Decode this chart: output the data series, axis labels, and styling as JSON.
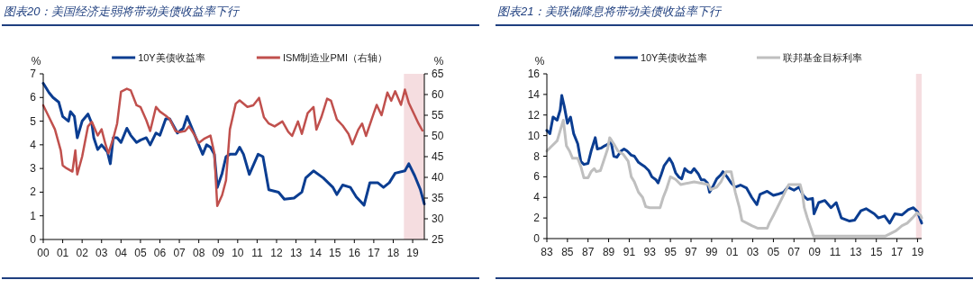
{
  "chart_data": [
    {
      "type": "line",
      "title": "图表20：美国经济走弱将带动美债收益率下行",
      "ylabel": "%",
      "y2label": "%",
      "legend": "top",
      "xlim": [
        2000,
        2019.6
      ],
      "xticks": [
        {
          "value": 2000,
          "label": "00"
        },
        {
          "value": 2001,
          "label": "01"
        },
        {
          "value": 2002,
          "label": "02"
        },
        {
          "value": 2003,
          "label": "03"
        },
        {
          "value": 2004,
          "label": "04"
        },
        {
          "value": 2005,
          "label": "05"
        },
        {
          "value": 2006,
          "label": "06"
        },
        {
          "value": 2007,
          "label": "07"
        },
        {
          "value": 2008,
          "label": "08"
        },
        {
          "value": 2009,
          "label": "09"
        },
        {
          "value": 2010,
          "label": "10"
        },
        {
          "value": 2011,
          "label": "11"
        },
        {
          "value": 2012,
          "label": "12"
        },
        {
          "value": 2013,
          "label": "13"
        },
        {
          "value": 2014,
          "label": "14"
        },
        {
          "value": 2015,
          "label": "15"
        },
        {
          "value": 2016,
          "label": "16"
        },
        {
          "value": 2017,
          "label": "17"
        },
        {
          "value": 2018,
          "label": "18"
        },
        {
          "value": 2019,
          "label": "19"
        }
      ],
      "ylim": [
        0,
        7
      ],
      "yticks": [
        0,
        1,
        2,
        3,
        4,
        5,
        6,
        7
      ],
      "y2lim": [
        25,
        65
      ],
      "y2ticks": [
        25,
        30,
        35,
        40,
        45,
        50,
        55,
        60,
        65
      ],
      "bands": [
        {
          "axis": "x",
          "from": 2018.55,
          "to": 2019.6,
          "color": "#f2d5d8"
        }
      ],
      "series": [
        {
          "name": "10Y美债收益率",
          "color": "#0b3d91",
          "x": [
            2000.0,
            2000.3,
            2000.5,
            2000.8,
            2001.0,
            2001.3,
            2001.4,
            2001.6,
            2001.75,
            2002.0,
            2002.3,
            2002.5,
            2002.6,
            2002.8,
            2003.0,
            2003.3,
            2003.45,
            2003.6,
            2003.8,
            2004.0,
            2004.3,
            2004.5,
            2004.8,
            2005.0,
            2005.3,
            2005.5,
            2005.8,
            2006.0,
            2006.3,
            2006.5,
            2006.7,
            2006.9,
            2007.2,
            2007.4,
            2007.6,
            2007.9,
            2008.2,
            2008.4,
            2008.6,
            2008.8,
            2008.95,
            2009.2,
            2009.4,
            2009.6,
            2009.9,
            2010.1,
            2010.3,
            2010.6,
            2011.05,
            2011.3,
            2011.6,
            2012.1,
            2012.4,
            2012.9,
            2013.3,
            2013.5,
            2013.9,
            2014.4,
            2014.9,
            2015.1,
            2015.4,
            2015.8,
            2016.1,
            2016.5,
            2016.8,
            2017.2,
            2017.5,
            2017.8,
            2018.1,
            2018.6,
            2018.8,
            2019.1,
            2019.4,
            2019.6
          ],
          "values": [
            6.6,
            6.2,
            6.0,
            5.8,
            5.2,
            5.0,
            5.4,
            5.2,
            4.3,
            5.0,
            5.3,
            4.9,
            4.3,
            3.8,
            4.0,
            3.7,
            3.2,
            4.3,
            4.3,
            4.1,
            4.7,
            4.4,
            4.1,
            4.2,
            4.3,
            4.0,
            4.5,
            4.4,
            5.1,
            5.1,
            4.8,
            4.5,
            4.7,
            5.2,
            4.8,
            4.2,
            3.6,
            4.0,
            3.9,
            3.6,
            2.2,
            2.8,
            3.5,
            3.6,
            3.6,
            3.9,
            3.6,
            2.75,
            3.6,
            3.5,
            2.1,
            2.0,
            1.7,
            1.75,
            2.0,
            2.6,
            2.9,
            2.6,
            2.2,
            1.9,
            2.3,
            2.2,
            1.8,
            1.45,
            2.4,
            2.4,
            2.2,
            2.4,
            2.8,
            2.9,
            3.2,
            2.7,
            2.1,
            1.5
          ]
        },
        {
          "name": "ISM制造业PMI（右轴）",
          "color": "#c0504d",
          "axis": "y2",
          "x": [
            2000.0,
            2000.3,
            2000.6,
            2000.9,
            2001.0,
            2001.2,
            2001.5,
            2001.65,
            2001.75,
            2002.0,
            2002.3,
            2002.5,
            2002.8,
            2003.0,
            2003.2,
            2003.35,
            2003.6,
            2003.8,
            2004.0,
            2004.3,
            2004.5,
            2004.8,
            2005.0,
            2005.3,
            2005.5,
            2005.8,
            2006.0,
            2006.3,
            2006.5,
            2006.8,
            2007.0,
            2007.3,
            2007.5,
            2007.8,
            2008.0,
            2008.3,
            2008.6,
            2008.8,
            2008.95,
            2009.2,
            2009.4,
            2009.6,
            2009.9,
            2010.1,
            2010.5,
            2010.8,
            2011.1,
            2011.35,
            2011.6,
            2011.9,
            2012.3,
            2012.6,
            2012.8,
            2013.1,
            2013.3,
            2013.6,
            2013.9,
            2014.05,
            2014.3,
            2014.6,
            2014.8,
            2015.1,
            2015.4,
            2015.7,
            2015.9,
            2016.2,
            2016.4,
            2016.6,
            2017.0,
            2017.15,
            2017.4,
            2017.7,
            2017.9,
            2018.1,
            2018.4,
            2018.6,
            2018.8,
            2019.1,
            2019.3,
            2019.5
          ],
          "values": [
            57.4,
            54.5,
            51.6,
            46.5,
            42.9,
            42.2,
            41.4,
            46.5,
            40.7,
            45,
            52.3,
            53.4,
            50.1,
            51.6,
            48,
            45.8,
            49.4,
            53,
            60.7,
            61.4,
            61,
            57.4,
            57,
            53.8,
            51.2,
            57,
            55.9,
            54.9,
            54.1,
            51.2,
            50.9,
            51.2,
            52.3,
            50.1,
            48.3,
            49.4,
            50.1,
            45.8,
            33.1,
            35.7,
            39.3,
            51.6,
            57.8,
            58.6,
            57,
            57.4,
            59.2,
            54.5,
            53,
            52.3,
            53.5,
            51,
            50,
            53.5,
            50.5,
            55.5,
            57,
            51.5,
            54.5,
            59,
            58.5,
            54,
            52.5,
            50.5,
            48,
            51.5,
            53,
            50,
            55.5,
            57.5,
            55,
            60.5,
            58.5,
            60.8,
            57.5,
            61.2,
            58,
            55,
            53,
            51.3
          ]
        }
      ]
    },
    {
      "type": "line",
      "title": "图表21：美联储降息将带动美债收益率下行",
      "ylabel": "%",
      "legend": "top",
      "xlim": [
        1983,
        2019.4
      ],
      "xticks": [
        {
          "value": 1983,
          "label": "83"
        },
        {
          "value": 1985,
          "label": "85"
        },
        {
          "value": 1987,
          "label": "87"
        },
        {
          "value": 1989,
          "label": "89"
        },
        {
          "value": 1991,
          "label": "91"
        },
        {
          "value": 1993,
          "label": "93"
        },
        {
          "value": 1995,
          "label": "95"
        },
        {
          "value": 1997,
          "label": "97"
        },
        {
          "value": 1999,
          "label": "99"
        },
        {
          "value": 2001,
          "label": "01"
        },
        {
          "value": 2003,
          "label": "03"
        },
        {
          "value": 2005,
          "label": "05"
        },
        {
          "value": 2007,
          "label": "07"
        },
        {
          "value": 2009,
          "label": "09"
        },
        {
          "value": 2011,
          "label": "11"
        },
        {
          "value": 2013,
          "label": "13"
        },
        {
          "value": 2015,
          "label": "15"
        },
        {
          "value": 2017,
          "label": "17"
        },
        {
          "value": 2019,
          "label": "19"
        }
      ],
      "ylim": [
        0,
        16
      ],
      "yticks": [
        0,
        2,
        4,
        6,
        8,
        10,
        12,
        14,
        16
      ],
      "bands": [
        {
          "axis": "x",
          "from": 2018.85,
          "to": 2019.4,
          "color": "#f2d5d8"
        }
      ],
      "series": [
        {
          "name": "10Y美债收益率",
          "color": "#0b3d91",
          "x": [
            1983.0,
            1983.3,
            1983.6,
            1984.0,
            1984.3,
            1984.45,
            1984.7,
            1985.0,
            1985.3,
            1985.6,
            1986.0,
            1986.3,
            1986.6,
            1987.0,
            1987.3,
            1987.7,
            1987.9,
            1988.3,
            1988.6,
            1989.0,
            1989.2,
            1989.5,
            1989.8,
            1990.2,
            1990.5,
            1990.8,
            1991.2,
            1991.5,
            1991.9,
            1992.2,
            1992.5,
            1992.9,
            1993.2,
            1993.6,
            1993.8,
            1994.1,
            1994.4,
            1994.7,
            1994.9,
            1995.2,
            1995.5,
            1995.8,
            1996.1,
            1996.4,
            1996.7,
            1997.0,
            1997.3,
            1997.7,
            1998.0,
            1998.3,
            1998.6,
            1998.8,
            1999.1,
            1999.5,
            1999.9,
            2000.1,
            2000.5,
            2000.9,
            2001.3,
            2001.8,
            2002.4,
            2002.9,
            2003.4,
            2003.7,
            2004.4,
            2005.0,
            2005.4,
            2006.0,
            2006.4,
            2007.0,
            2007.5,
            2007.9,
            2008.3,
            2008.8,
            2008.95,
            2009.4,
            2010.0,
            2010.6,
            2011.1,
            2011.6,
            2012.4,
            2012.9,
            2013.5,
            2014.0,
            2014.8,
            2015.2,
            2015.8,
            2016.3,
            2016.8,
            2017.5,
            2018.1,
            2018.6,
            2019.0,
            2019.4
          ],
          "values": [
            10.5,
            10.2,
            11.8,
            11.5,
            12.5,
            13.9,
            12.8,
            11.2,
            11.8,
            10.2,
            9.2,
            7.5,
            7.2,
            7.3,
            8.5,
            9.8,
            8.7,
            8.8,
            9.0,
            9.2,
            9.6,
            8.0,
            7.9,
            8.5,
            8.7,
            8.5,
            8.1,
            8.0,
            7.4,
            7.2,
            7.0,
            6.6,
            6.0,
            5.7,
            5.4,
            6.2,
            7.1,
            7.5,
            7.8,
            7.3,
            6.4,
            6.0,
            5.8,
            6.8,
            6.5,
            6.4,
            6.8,
            6.3,
            5.7,
            5.7,
            5.4,
            4.5,
            5.0,
            5.8,
            6.2,
            6.5,
            6.0,
            5.4,
            5.0,
            5.2,
            4.9,
            4.0,
            3.3,
            4.3,
            4.6,
            4.2,
            4.3,
            4.5,
            5.0,
            4.7,
            5.0,
            4.2,
            3.8,
            3.9,
            2.4,
            3.5,
            3.7,
            3.0,
            3.5,
            2.0,
            1.7,
            1.8,
            2.7,
            2.9,
            2.4,
            2.0,
            2.2,
            1.5,
            2.4,
            2.3,
            2.8,
            3.0,
            2.6,
            1.5
          ]
        },
        {
          "name": "联邦基金目标利率",
          "color": "#bfbfbf",
          "x": [
            1983.0,
            1983.5,
            1984.0,
            1984.3,
            1984.6,
            1984.9,
            1985.2,
            1985.5,
            1986.0,
            1986.3,
            1986.6,
            1987.0,
            1987.3,
            1987.6,
            1987.8,
            1988.2,
            1988.5,
            1988.9,
            1989.1,
            1989.5,
            1989.9,
            1990.4,
            1990.9,
            1991.2,
            1991.5,
            1991.9,
            1992.3,
            1992.6,
            1993.0,
            1994.0,
            1994.3,
            1994.6,
            1995.0,
            1995.5,
            1996.0,
            1997.3,
            1998.7,
            1998.9,
            1999.5,
            1999.9,
            2000.4,
            2000.9,
            2001.0,
            2001.3,
            2001.7,
            2001.95,
            2002.9,
            2003.5,
            2004.4,
            2004.6,
            2005.0,
            2005.5,
            2006.0,
            2006.5,
            2007.6,
            2007.8,
            2008.0,
            2008.3,
            2008.9,
            2015.9,
            2016.9,
            2017.5,
            2018.0,
            2018.5,
            2018.95,
            2019.3,
            2019.4
          ],
          "values": [
            8.5,
            9.0,
            9.5,
            10.5,
            11.5,
            9.0,
            8.5,
            7.8,
            7.8,
            7.0,
            5.9,
            5.9,
            6.5,
            6.8,
            6.5,
            6.6,
            7.5,
            8.7,
            9.8,
            9.2,
            8.5,
            8.2,
            7.5,
            6.0,
            5.5,
            4.5,
            4.0,
            3.1,
            3.0,
            3.0,
            4.0,
            4.75,
            6.0,
            5.75,
            5.25,
            5.5,
            5.25,
            4.75,
            5.0,
            5.5,
            6.5,
            6.5,
            6.0,
            4.5,
            3.0,
            1.75,
            1.25,
            1.0,
            1.0,
            1.5,
            2.25,
            3.25,
            4.25,
            5.25,
            5.25,
            4.5,
            3.0,
            2.0,
            0.25,
            0.25,
            0.75,
            1.25,
            1.5,
            2.0,
            2.5,
            2.25,
            2.0
          ]
        }
      ]
    }
  ]
}
